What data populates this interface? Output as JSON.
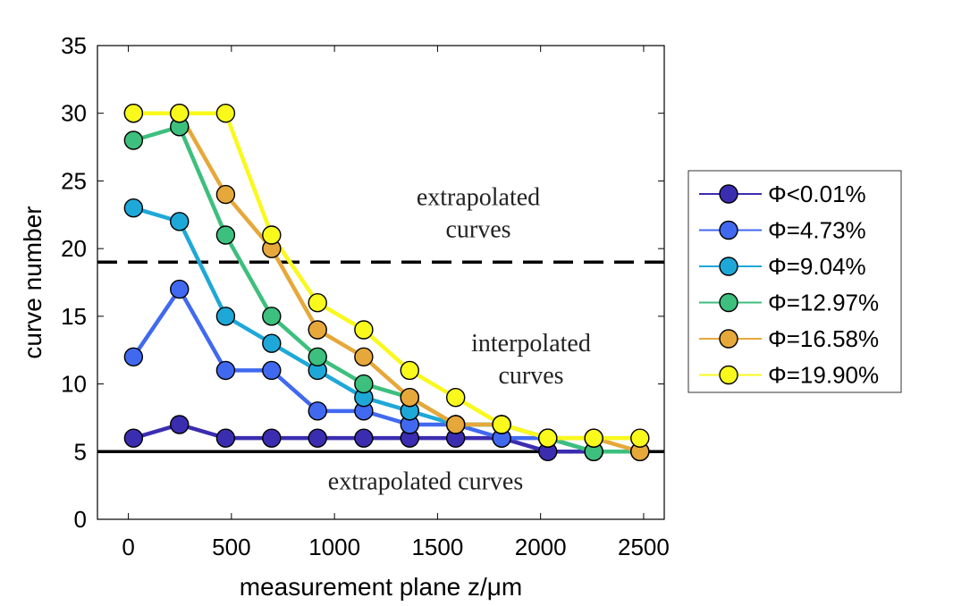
{
  "chart_data": {
    "type": "line",
    "xlabel": "measurement plane z/μm",
    "ylabel": "curve number",
    "xlim": [
      -150,
      2600
    ],
    "ylim": [
      0,
      35
    ],
    "xticks": [
      0,
      500,
      1000,
      1500,
      2000,
      2500
    ],
    "yticks": [
      0,
      5,
      10,
      15,
      20,
      25,
      30,
      35
    ],
    "grid": false,
    "legend_position": "right-outside",
    "x": [
      25,
      248,
      472,
      695,
      918,
      1142,
      1365,
      1588,
      1811,
      2035,
      2258,
      2482
    ],
    "series": [
      {
        "name": "Φ<0.01%",
        "color": "#3b2db0",
        "values": [
          6,
          7,
          6,
          6,
          6,
          6,
          6,
          6,
          6,
          5,
          5,
          5
        ]
      },
      {
        "name": "Φ=4.73%",
        "color": "#4169f0",
        "values": [
          12,
          17,
          11,
          11,
          8,
          8,
          7,
          7,
          6,
          6,
          5,
          5
        ]
      },
      {
        "name": "Φ=9.04%",
        "color": "#1ea8d8",
        "values": [
          23,
          22,
          15,
          13,
          11,
          9,
          8,
          7,
          7,
          6,
          5,
          5
        ]
      },
      {
        "name": "Φ=12.97%",
        "color": "#3dbf7d",
        "values": [
          28,
          29,
          21,
          15,
          12,
          10,
          9,
          7,
          7,
          6,
          5,
          5
        ]
      },
      {
        "name": "Φ=16.58%",
        "color": "#e6a83a",
        "values": [
          30,
          30,
          24,
          20,
          14,
          12,
          9,
          7,
          7,
          6,
          6,
          5
        ]
      },
      {
        "name": "Φ=19.90%",
        "color": "#f9f91c",
        "values": [
          30,
          30,
          30,
          21,
          16,
          14,
          11,
          9,
          7,
          6,
          6,
          6
        ]
      }
    ],
    "reference_lines": [
      {
        "y": 19,
        "style": "dashed",
        "color": "#000000"
      },
      {
        "y": 5,
        "style": "solid",
        "color": "#000000"
      }
    ],
    "annotations": [
      {
        "lines": [
          "extrapolated",
          "curves"
        ],
        "x": 2000,
        "y": 23.2
      },
      {
        "lines": [
          "interpolated",
          "curves"
        ],
        "x": 1990,
        "y": 12.4
      },
      {
        "lines": [
          "extrapolated curves"
        ],
        "x": 1700,
        "y": 2.2
      }
    ]
  }
}
